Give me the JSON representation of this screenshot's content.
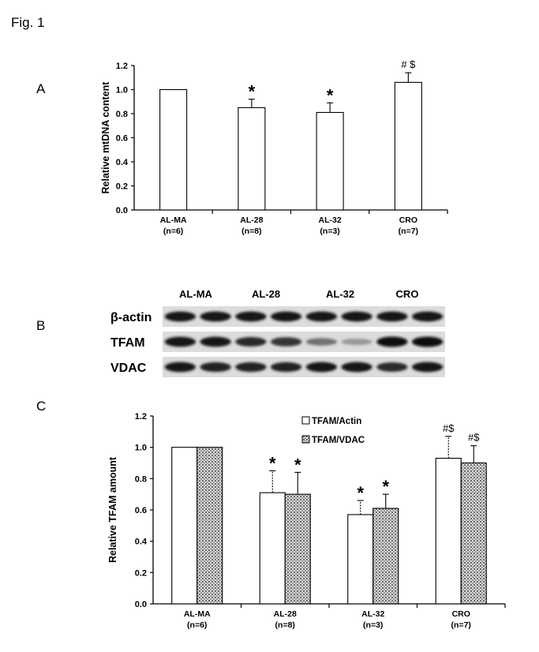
{
  "figure": {
    "title": "Fig. 1"
  },
  "panel_a": {
    "letter": "A"
  },
  "panel_b": {
    "letter": "B",
    "columns": [
      "AL-MA",
      "AL-28",
      "AL-32",
      "CRO"
    ],
    "rows": [
      {
        "label": "β-actin",
        "intensity": [
          0.95,
          0.95,
          0.95,
          0.95,
          0.95,
          0.95,
          0.95,
          0.95
        ]
      },
      {
        "label": "TFAM",
        "intensity": [
          0.95,
          0.95,
          0.85,
          0.8,
          0.5,
          0.3,
          1.0,
          1.0
        ]
      },
      {
        "label": "VDAC",
        "intensity": [
          0.95,
          0.9,
          0.9,
          0.9,
          0.95,
          0.95,
          0.85,
          0.95
        ]
      }
    ]
  },
  "panel_c": {
    "letter": "C"
  },
  "chart_data": [
    {
      "type": "bar",
      "panel": "A",
      "ylabel": "Relative mtDNA content",
      "ylim": [
        0,
        1.2
      ],
      "yticks": [
        "0.0",
        "0.2",
        "0.4",
        "0.6",
        "0.8",
        "1.0",
        "1.2"
      ],
      "categories": [
        "AL-MA",
        "AL-28",
        "AL-32",
        "CRO"
      ],
      "category_n": [
        "(n=6)",
        "(n=8)",
        "(n=3)",
        "(n=7)"
      ],
      "series": [
        {
          "values": [
            1.0,
            0.85,
            0.81,
            1.06
          ],
          "errors": [
            0,
            0.07,
            0.08,
            0.08
          ],
          "fill": "#ffffff"
        }
      ],
      "annotations": [
        "",
        "*",
        "*",
        "# $"
      ],
      "grid": false
    },
    {
      "type": "bar",
      "panel": "C",
      "ylabel": "Relative TFAM amount",
      "ylim": [
        0,
        1.2
      ],
      "yticks": [
        "0.0",
        "0.2",
        "0.4",
        "0.6",
        "0.8",
        "1.0",
        "1.2"
      ],
      "categories": [
        "AL-MA",
        "AL-28",
        "AL-32",
        "CRO"
      ],
      "category_n": [
        "(n=6)",
        "(n=8)",
        "(n=3)",
        "(n=7)"
      ],
      "series": [
        {
          "name": "TFAM/Actin",
          "values": [
            1.0,
            0.71,
            0.57,
            0.93
          ],
          "errors": [
            0,
            0.14,
            0.09,
            0.14
          ],
          "fill": "#ffffff"
        },
        {
          "name": "TFAM/VDAC",
          "values": [
            1.0,
            0.7,
            0.61,
            0.9
          ],
          "errors": [
            0,
            0.14,
            0.09,
            0.11
          ],
          "fill": "pattern"
        }
      ],
      "annotations": [
        [
          "",
          ""
        ],
        [
          "*",
          "*"
        ],
        [
          "*",
          "*"
        ],
        [
          "#$",
          "#$"
        ]
      ],
      "legend": "top-right",
      "grid": false
    }
  ]
}
